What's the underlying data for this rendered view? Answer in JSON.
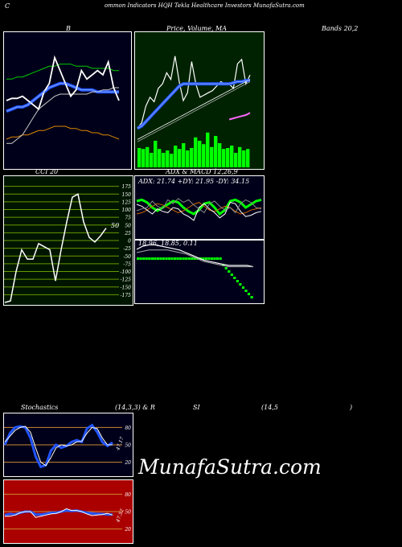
{
  "header": {
    "left": "C",
    "title": "ommon  Indicators HQH Tekla  Healthcare   Investors MunafaSutra.com"
  },
  "labels": {
    "bands_left": "B",
    "price_title": "Price,  Volume,  MA",
    "bands_right": "Bands 20,2",
    "cci_title": "CCI 20",
    "adx_title": "ADX  & MACD 12,26,9",
    "adx_values": "ADX: 21.74  +DY: 21.95 -DY: 34.15",
    "macd_values": "18.96,  18.85,  0.11",
    "stoch_title": "Stochastics",
    "stoch_params": "(14,3,3) & R",
    "rsi_title": "SI",
    "rsi_params": "(14,5",
    "rsi_close": ")",
    "brand": "MunafaSutra.com"
  },
  "colors": {
    "bands_bg": "#00001a",
    "price_bg": "#002200",
    "cci_bg": "#001500",
    "adx_bg": "#00001a",
    "stoch_bg": "#00001a",
    "rsi_bg": "#aa0000",
    "grid_green": "#669900",
    "grid_orange": "#cc8833",
    "blue": "#2255ff",
    "volume": "#00ff00"
  },
  "chart_data": [
    {
      "type": "line",
      "panel": "bollinger",
      "series": [
        {
          "values": [
            12,
            13,
            13,
            14,
            14,
            15,
            16,
            16,
            17,
            18,
            18,
            18,
            17,
            17,
            16,
            16,
            15,
            15,
            14,
            14,
            13,
            12
          ]
        },
        {
          "values": [
            40,
            40,
            41,
            41,
            42,
            43,
            44,
            45,
            46,
            46,
            47,
            47,
            47,
            46,
            46,
            46,
            45,
            45,
            45,
            45,
            44,
            44
          ]
        },
        {
          "values": [
            25,
            26,
            27,
            27,
            28,
            30,
            32,
            34,
            36,
            37,
            38,
            38,
            37,
            36,
            35,
            35,
            35,
            34,
            34,
            34,
            34,
            34
          ]
        },
        {
          "values": [
            10,
            10,
            12,
            14,
            18,
            22,
            26,
            28,
            30,
            32,
            33,
            33,
            33,
            33,
            33,
            33,
            34,
            34,
            35,
            35,
            36,
            36
          ]
        },
        {
          "values": [
            30,
            31,
            31,
            32,
            30,
            28,
            26,
            34,
            38,
            50,
            44,
            38,
            32,
            35,
            44,
            40,
            42,
            44,
            42,
            48,
            36,
            30
          ]
        }
      ]
    },
    {
      "type": "bar",
      "panel": "price-volume",
      "volume": [
        40,
        38,
        42,
        30,
        55,
        38,
        30,
        35,
        28,
        45,
        38,
        50,
        35,
        40,
        62,
        55,
        48,
        72,
        42,
        65,
        50,
        38,
        40,
        45,
        30,
        42,
        35,
        38
      ],
      "series": [
        {
          "values": [
            30,
            35,
            50,
            58,
            54,
            66,
            70,
            80,
            74,
            95,
            72,
            55,
            62,
            90,
            70,
            58,
            60,
            62,
            64,
            68,
            72,
            70,
            70,
            66,
            88,
            92,
            70,
            78
          ]
        },
        {
          "values": [
            30,
            32,
            36,
            40,
            44,
            48,
            52,
            56,
            60,
            64,
            68,
            70,
            70,
            70,
            70,
            70,
            70,
            70,
            70,
            70,
            70,
            70,
            70,
            71,
            72,
            72,
            73,
            73
          ]
        },
        {
          "values": [
            20,
            22,
            24,
            26,
            28,
            30,
            32,
            34,
            36,
            38,
            40,
            42,
            44,
            46,
            48,
            50,
            52,
            54,
            56,
            58,
            60,
            62,
            64,
            66,
            68,
            70,
            72,
            74
          ]
        },
        {
          "values": [
            18,
            20,
            22,
            24,
            26,
            28,
            30,
            32,
            34,
            36,
            38,
            40,
            42,
            44,
            46,
            48,
            50,
            52,
            54,
            56,
            58,
            60,
            62,
            64,
            66,
            68,
            70,
            72
          ]
        },
        {
          "values": [
            null,
            null,
            null,
            null,
            null,
            null,
            null,
            null,
            null,
            null,
            null,
            null,
            null,
            null,
            null,
            null,
            null,
            null,
            null,
            null,
            null,
            null,
            38,
            39,
            40,
            41,
            42,
            44
          ]
        }
      ]
    },
    {
      "type": "line",
      "panel": "cci",
      "ticks": [
        175,
        150,
        125,
        100,
        75,
        50,
        25,
        0,
        -25,
        -50,
        -75,
        -100,
        -125,
        -150,
        -175
      ],
      "ylim": [
        -200,
        200
      ],
      "annotation": "50",
      "values": [
        -200,
        -195,
        -100,
        -30,
        -60,
        -60,
        -10,
        -20,
        -30,
        -130,
        -30,
        60,
        140,
        150,
        60,
        10,
        -5,
        15,
        40
      ]
    },
    {
      "type": "line",
      "panel": "adx",
      "series": [
        {
          "values": [
            60,
            62,
            58,
            50,
            45,
            50,
            55,
            60,
            58,
            50,
            44,
            40,
            46,
            56,
            58,
            50,
            40,
            46,
            60,
            62,
            58,
            50,
            55,
            60,
            62
          ]
        },
        {
          "values": [
            40,
            42,
            46,
            52,
            56,
            54,
            50,
            46,
            42,
            45,
            50,
            55,
            58,
            52,
            46,
            44,
            48,
            52,
            50,
            44,
            40,
            42,
            46,
            48,
            50
          ]
        },
        {
          "values": [
            55,
            52,
            46,
            40,
            48,
            44,
            42,
            50,
            48,
            40,
            36,
            30,
            50,
            56,
            48,
            42,
            34,
            40,
            58,
            56,
            44,
            36,
            38,
            42,
            44
          ]
        },
        {
          "values": [
            45,
            48,
            50,
            60,
            52,
            48,
            62,
            56,
            64,
            58,
            62,
            54,
            48,
            42,
            56,
            60,
            52,
            46,
            50,
            42,
            56,
            62,
            58,
            50,
            48
          ]
        }
      ]
    },
    {
      "type": "bar",
      "panel": "macd",
      "histogram": [
        70,
        70,
        70,
        70,
        70,
        70,
        70,
        70,
        70,
        70,
        70,
        70,
        70,
        70,
        70,
        70,
        70,
        70,
        70,
        70,
        70,
        70,
        70,
        70,
        70,
        70,
        70,
        70,
        70,
        70,
        60,
        55,
        50,
        45,
        40,
        35,
        30,
        25,
        20,
        15,
        10
      ],
      "series": [
        {
          "values": [
            85,
            90,
            92,
            92,
            90,
            88,
            86,
            84,
            80,
            76,
            72,
            68,
            66,
            64,
            62,
            60,
            60,
            60,
            60,
            58
          ]
        },
        {
          "values": [
            80,
            82,
            84,
            84,
            84,
            84,
            82,
            80,
            78,
            74,
            70,
            66,
            64,
            62,
            60,
            58,
            58,
            58,
            58,
            58
          ]
        }
      ]
    },
    {
      "type": "line",
      "panel": "stochastics",
      "ticks": [
        80,
        50,
        20
      ],
      "annotation": "47.17",
      "series": [
        {
          "values": [
            50,
            70,
            80,
            82,
            80,
            62,
            30,
            12,
            15,
            40,
            50,
            45,
            48,
            55,
            58,
            55,
            78,
            84,
            72,
            55,
            48,
            54
          ]
        },
        {
          "values": [
            55,
            65,
            75,
            80,
            82,
            72,
            45,
            20,
            14,
            28,
            45,
            50,
            48,
            50,
            55,
            56,
            70,
            80,
            78,
            62,
            50,
            50
          ]
        }
      ]
    },
    {
      "type": "line",
      "panel": "rsi",
      "ticks": [
        80,
        50,
        20
      ],
      "annotation": "47.52",
      "series": [
        {
          "values": [
            44,
            46,
            45,
            48,
            50,
            50,
            45,
            45,
            46,
            48,
            48,
            50,
            52,
            51,
            52,
            50,
            48,
            47,
            46,
            46,
            45,
            45
          ]
        },
        {
          "values": [
            42,
            42,
            44,
            48,
            50,
            50,
            40,
            42,
            44,
            46,
            47,
            50,
            55,
            52,
            52,
            50,
            46,
            43,
            44,
            45,
            47,
            44
          ]
        }
      ]
    }
  ]
}
